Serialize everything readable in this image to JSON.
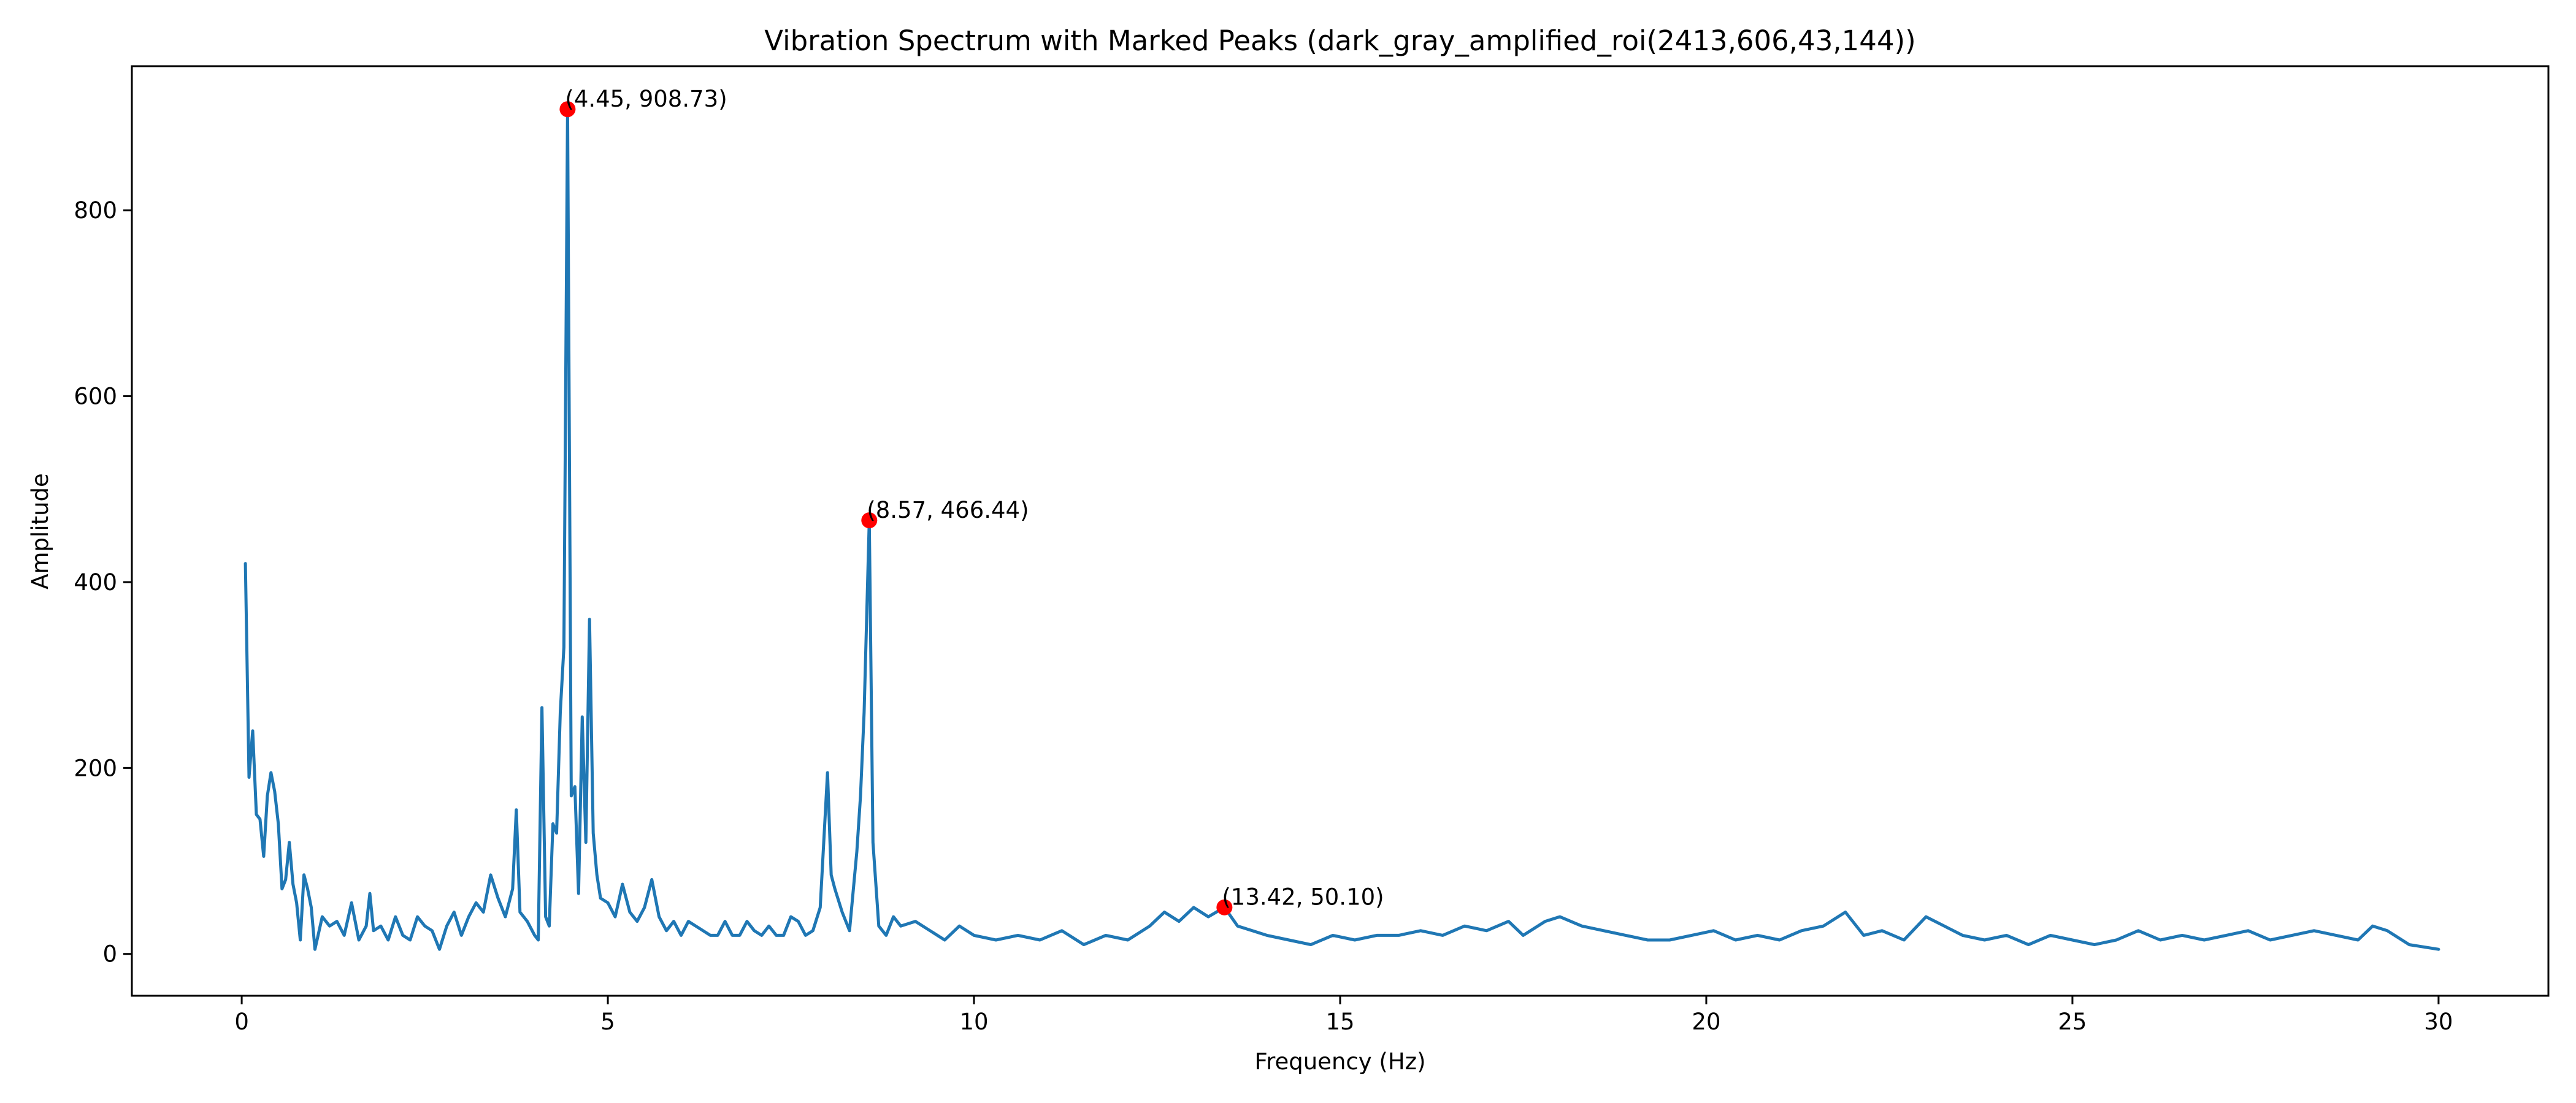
{
  "chart_data": {
    "type": "line",
    "title": "Vibration Spectrum with Marked Peaks (dark_gray_amplified_roi(2413,606,43,144))",
    "xlabel": "Frequency (Hz)",
    "ylabel": "Amplitude",
    "xlim": [
      -1.5,
      31.5
    ],
    "ylim": [
      -45,
      955
    ],
    "xticks": [
      0,
      5,
      10,
      15,
      20,
      25,
      30
    ],
    "yticks": [
      0,
      200,
      400,
      600,
      800
    ],
    "grid": false,
    "colors": {
      "line": "#1f77b4",
      "peaks": "#ff0000"
    },
    "series": [
      {
        "x": [
          0.05,
          0.1,
          0.15,
          0.2,
          0.25,
          0.3,
          0.35,
          0.4,
          0.45,
          0.5,
          0.55,
          0.6,
          0.65,
          0.7,
          0.75,
          0.8,
          0.85,
          0.9,
          0.95,
          1.0,
          1.1,
          1.2,
          1.3,
          1.4,
          1.5,
          1.6,
          1.7,
          1.75,
          1.8,
          1.9,
          2.0,
          2.1,
          2.2,
          2.3,
          2.4,
          2.5,
          2.6,
          2.7,
          2.8,
          2.9,
          3.0,
          3.1,
          3.2,
          3.3,
          3.4,
          3.5,
          3.6,
          3.7,
          3.75,
          3.8,
          3.9,
          4.0,
          4.05,
          4.1,
          4.15,
          4.2,
          4.25,
          4.3,
          4.35,
          4.4,
          4.45,
          4.5,
          4.55,
          4.6,
          4.65,
          4.7,
          4.75,
          4.8,
          4.85,
          4.9,
          5.0,
          5.1,
          5.2,
          5.3,
          5.4,
          5.5,
          5.6,
          5.7,
          5.8,
          5.9,
          6.0,
          6.1,
          6.2,
          6.3,
          6.4,
          6.5,
          6.6,
          6.7,
          6.8,
          6.9,
          7.0,
          7.1,
          7.2,
          7.3,
          7.4,
          7.5,
          7.6,
          7.7,
          7.8,
          7.9,
          8.0,
          8.05,
          8.1,
          8.2,
          8.3,
          8.4,
          8.45,
          8.5,
          8.57,
          8.62,
          8.7,
          8.8,
          8.9,
          9.0,
          9.2,
          9.4,
          9.6,
          9.8,
          10.0,
          10.3,
          10.6,
          10.9,
          11.2,
          11.5,
          11.8,
          12.1,
          12.4,
          12.6,
          12.8,
          13.0,
          13.2,
          13.42,
          13.6,
          13.8,
          14.0,
          14.3,
          14.6,
          14.9,
          15.2,
          15.5,
          15.8,
          16.1,
          16.4,
          16.7,
          17.0,
          17.3,
          17.5,
          17.8,
          18.0,
          18.3,
          18.6,
          18.9,
          19.2,
          19.5,
          19.8,
          20.1,
          20.4,
          20.7,
          21.0,
          21.3,
          21.6,
          21.9,
          22.15,
          22.4,
          22.7,
          23.0,
          23.25,
          23.5,
          23.8,
          24.1,
          24.4,
          24.7,
          25.0,
          25.3,
          25.6,
          25.9,
          26.2,
          26.5,
          26.8,
          27.1,
          27.4,
          27.7,
          28.0,
          28.3,
          28.6,
          28.9,
          29.1,
          29.3,
          29.6,
          30.0
        ],
        "y": [
          420,
          190,
          240,
          150,
          145,
          105,
          170,
          195,
          175,
          140,
          70,
          80,
          120,
          75,
          55,
          15,
          85,
          70,
          50,
          5,
          40,
          30,
          35,
          20,
          55,
          15,
          30,
          65,
          25,
          30,
          15,
          40,
          20,
          15,
          40,
          30,
          25,
          5,
          30,
          45,
          20,
          40,
          55,
          45,
          85,
          60,
          40,
          70,
          155,
          45,
          35,
          20,
          15,
          265,
          40,
          30,
          140,
          130,
          260,
          330,
          908.73,
          170,
          180,
          65,
          255,
          120,
          360,
          130,
          85,
          60,
          55,
          40,
          75,
          45,
          35,
          50,
          80,
          40,
          25,
          35,
          20,
          35,
          30,
          25,
          20,
          20,
          35,
          20,
          20,
          35,
          25,
          20,
          30,
          20,
          20,
          40,
          35,
          20,
          25,
          50,
          195,
          85,
          70,
          45,
          25,
          110,
          170,
          260,
          466.44,
          120,
          30,
          20,
          40,
          30,
          35,
          25,
          15,
          30,
          20,
          15,
          20,
          15,
          25,
          10,
          20,
          15,
          30,
          45,
          35,
          50,
          40,
          50.1,
          30,
          25,
          20,
          15,
          10,
          20,
          15,
          20,
          20,
          25,
          20,
          30,
          25,
          35,
          20,
          35,
          40,
          30,
          25,
          20,
          15,
          15,
          20,
          25,
          15,
          20,
          15,
          25,
          30,
          45,
          20,
          25,
          15,
          40,
          30,
          20,
          15,
          20,
          10,
          20,
          15,
          10,
          15,
          25,
          15,
          20,
          15,
          20,
          25,
          15,
          20,
          25,
          20,
          15,
          30,
          25,
          10,
          5
        ]
      }
    ],
    "peaks": [
      {
        "x": 4.45,
        "y": 908.73,
        "label": "(4.45, 908.73)"
      },
      {
        "x": 8.57,
        "y": 466.44,
        "label": "(8.57, 466.44)"
      },
      {
        "x": 13.42,
        "y": 50.1,
        "label": "(13.42, 50.10)"
      }
    ]
  }
}
